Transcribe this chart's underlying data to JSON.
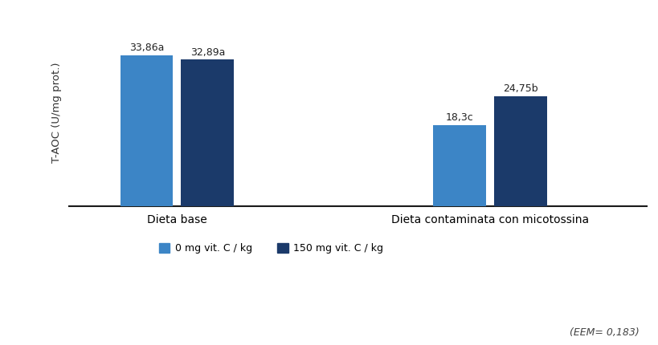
{
  "groups": [
    "Dieta base",
    "Dieta contaminata con micotossina"
  ],
  "series": [
    {
      "label": "0 mg vit. C / kg",
      "color": "#3C85C6",
      "values": [
        33.86,
        18.3
      ]
    },
    {
      "label": "150 mg vit. C / kg",
      "color": "#1B3A6A",
      "values": [
        32.89,
        24.75
      ]
    }
  ],
  "bar_labels": [
    [
      "33,86a",
      "18,3c"
    ],
    [
      "32,89a",
      "24,75b"
    ]
  ],
  "ylabel": "T-AOC (U/mg prot.)",
  "ylim": [
    0,
    42
  ],
  "footnote": "(EEM= 0,183)",
  "bar_width": 0.22,
  "group_centers": [
    0.55,
    1.85
  ],
  "xlim": [
    0.1,
    2.5
  ],
  "background_color": "#ffffff",
  "axis_color": "#1a1a1a",
  "label_fontsize": 9,
  "tick_fontsize": 9,
  "ylabel_fontsize": 9.5,
  "legend_fontsize": 9,
  "footnote_fontsize": 9
}
